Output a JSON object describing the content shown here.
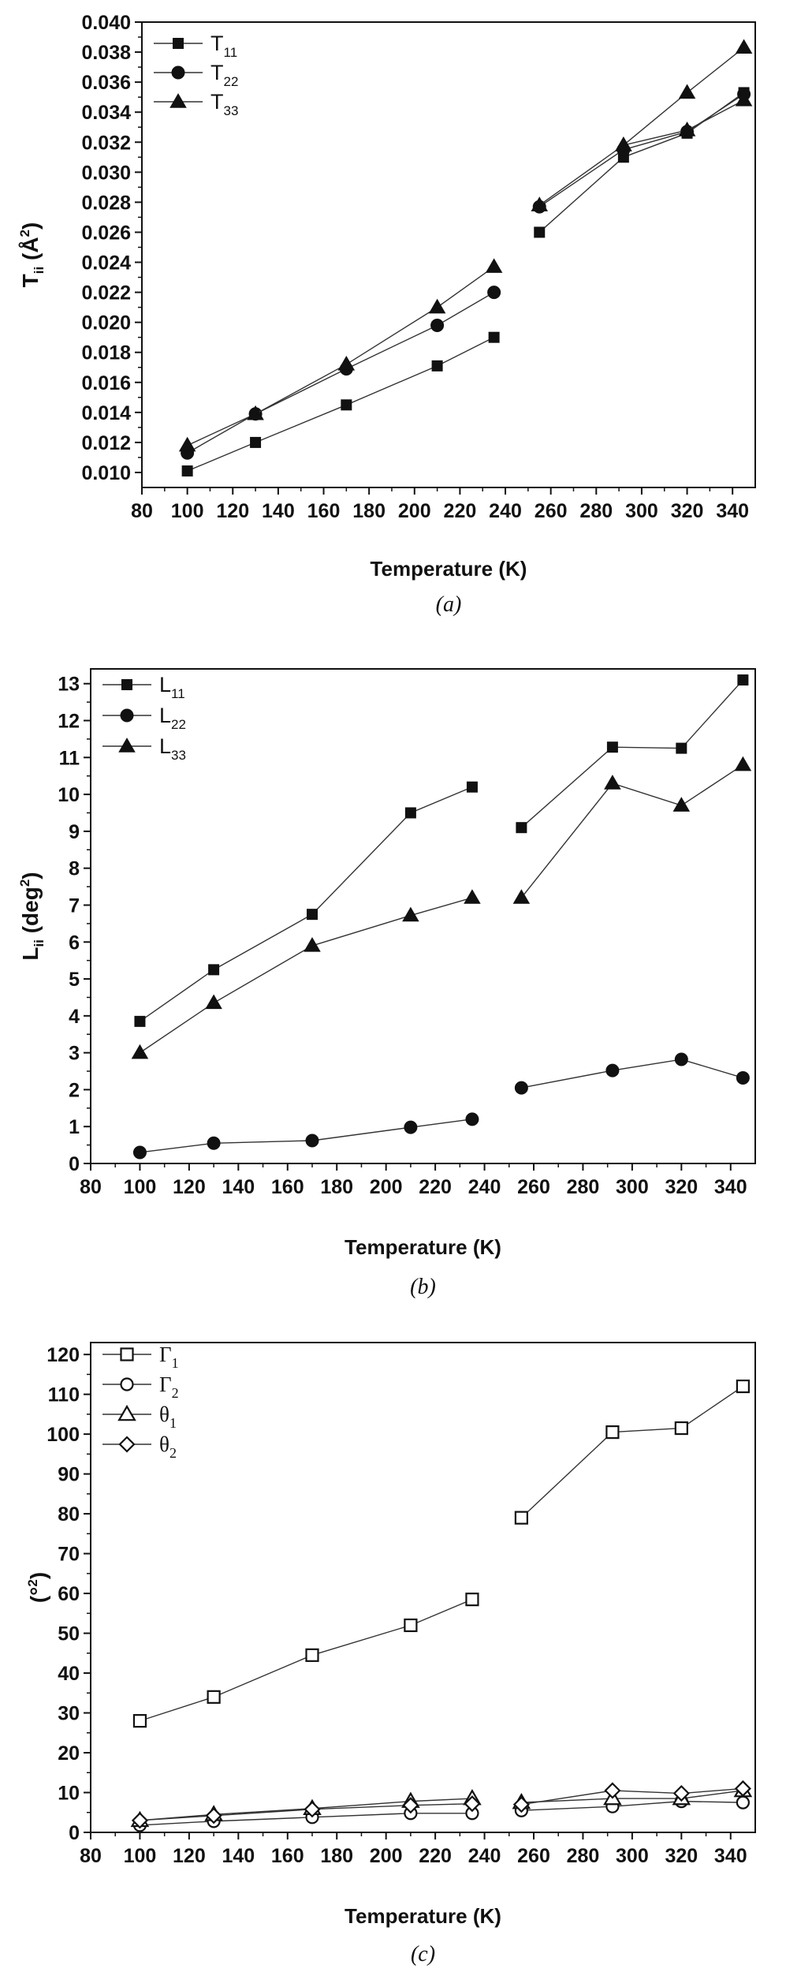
{
  "chart_data": [
    {
      "type": "line",
      "panel": "(a)",
      "caption": "(a)",
      "xlabel": "Temperature (K)",
      "ylabel_main": "T",
      "ylabel_sub": "ii",
      "ylabel_rest": " (Å",
      "ylabel_sup": "2",
      "ylabel_close": ")",
      "xlim": [
        80,
        350
      ],
      "ylim": [
        0.009,
        0.04
      ],
      "xticks": [
        80,
        100,
        120,
        140,
        160,
        180,
        200,
        220,
        240,
        260,
        280,
        300,
        320,
        340
      ],
      "yticks": [
        0.01,
        0.012,
        0.014,
        0.016,
        0.018,
        0.02,
        0.022,
        0.024,
        0.026,
        0.028,
        0.03,
        0.032,
        0.034,
        0.036,
        0.038,
        0.04
      ],
      "ytick_decimals": 3,
      "grid": false,
      "legend_position": "top-left",
      "series": [
        {
          "name_main": "T",
          "name_sub": "11",
          "marker": "square",
          "filled": true,
          "segments": [
            [
              [
                100,
                0.0101
              ],
              [
                130,
                0.012
              ],
              [
                170,
                0.0145
              ],
              [
                210,
                0.0171
              ],
              [
                235,
                0.019
              ]
            ],
            [
              [
                255,
                0.026
              ],
              [
                292,
                0.031
              ],
              [
                320,
                0.0326
              ],
              [
                345,
                0.0353
              ]
            ]
          ]
        },
        {
          "name_main": "T",
          "name_sub": "22",
          "marker": "circle",
          "filled": true,
          "segments": [
            [
              [
                100,
                0.0113
              ],
              [
                130,
                0.0139
              ],
              [
                170,
                0.0169
              ],
              [
                210,
                0.0198
              ],
              [
                235,
                0.022
              ]
            ],
            [
              [
                255,
                0.0277
              ],
              [
                292,
                0.0315
              ],
              [
                320,
                0.0327
              ],
              [
                345,
                0.0352
              ]
            ]
          ]
        },
        {
          "name_main": "T",
          "name_sub": "33",
          "marker": "triangle",
          "filled": true,
          "segments": [
            [
              [
                100,
                0.0118
              ],
              [
                130,
                0.0139
              ],
              [
                170,
                0.0172
              ],
              [
                210,
                0.021
              ],
              [
                235,
                0.0237
              ]
            ],
            [
              [
                255,
                0.0278
              ],
              [
                292,
                0.0318
              ],
              [
                320,
                0.0353
              ],
              [
                345,
                0.0383
              ]
            ]
          ]
        },
        {
          "name_main": "",
          "name_sub": "",
          "marker": "triangle",
          "filled": true,
          "segments": [
            [
              [
                292,
                0.0318
              ],
              [
                320,
                0.0328
              ],
              [
                345,
                0.0348
              ]
            ]
          ]
        }
      ]
    },
    {
      "type": "line",
      "panel": "(b)",
      "caption": "(b)",
      "xlabel": "Temperature (K)",
      "ylabel_main": "L",
      "ylabel_sub": "ii",
      "ylabel_rest": " (deg",
      "ylabel_sup": "2",
      "ylabel_close": ")",
      "xlim": [
        80,
        350
      ],
      "ylim": [
        0,
        13.4
      ],
      "xticks": [
        80,
        100,
        120,
        140,
        160,
        180,
        200,
        220,
        240,
        260,
        280,
        300,
        320,
        340
      ],
      "yticks": [
        0,
        1,
        2,
        3,
        4,
        5,
        6,
        7,
        8,
        9,
        10,
        11,
        12,
        13
      ],
      "ytick_decimals": 0,
      "grid": false,
      "legend_position": "top-left",
      "series": [
        {
          "name_main": "L",
          "name_sub": "11",
          "marker": "square",
          "filled": true,
          "segments": [
            [
              [
                100,
                3.85
              ],
              [
                130,
                5.25
              ],
              [
                170,
                6.75
              ],
              [
                210,
                9.5
              ],
              [
                235,
                10.2
              ]
            ],
            [
              [
                255,
                9.1
              ],
              [
                292,
                11.28
              ],
              [
                320,
                11.25
              ],
              [
                345,
                13.1
              ]
            ]
          ]
        },
        {
          "name_main": "L",
          "name_sub": "22",
          "marker": "circle",
          "filled": true,
          "segments": [
            [
              [
                100,
                0.3
              ],
              [
                130,
                0.55
              ],
              [
                170,
                0.62
              ],
              [
                210,
                0.98
              ],
              [
                235,
                1.2
              ]
            ],
            [
              [
                255,
                2.05
              ],
              [
                292,
                2.52
              ],
              [
                320,
                2.82
              ],
              [
                345,
                2.32
              ]
            ]
          ]
        },
        {
          "name_main": "L",
          "name_sub": "33",
          "marker": "triangle",
          "filled": true,
          "segments": [
            [
              [
                100,
                3.0
              ],
              [
                130,
                4.35
              ],
              [
                170,
                5.9
              ],
              [
                210,
                6.72
              ],
              [
                235,
                7.2
              ]
            ],
            [
              [
                255,
                7.2
              ],
              [
                292,
                10.3
              ],
              [
                320,
                9.7
              ],
              [
                345,
                10.8
              ]
            ]
          ]
        }
      ]
    },
    {
      "type": "line",
      "panel": "(c)",
      "caption": "(c)",
      "xlabel": "Temperature (K)",
      "ylabel_main": "(°",
      "ylabel_sub": "",
      "ylabel_rest": "",
      "ylabel_sup": "2",
      "ylabel_close": ")",
      "xlim": [
        80,
        350
      ],
      "ylim": [
        0,
        123
      ],
      "xticks": [
        80,
        100,
        120,
        140,
        160,
        180,
        200,
        220,
        240,
        260,
        280,
        300,
        320,
        340
      ],
      "yticks": [
        0,
        10,
        20,
        30,
        40,
        50,
        60,
        70,
        80,
        90,
        100,
        110,
        120
      ],
      "ytick_decimals": 0,
      "grid": false,
      "legend_position": "top-left",
      "series": [
        {
          "name_main": "Γ",
          "name_sub": "1",
          "marker": "square",
          "filled": false,
          "segments": [
            [
              [
                100,
                28.0
              ],
              [
                130,
                34.0
              ],
              [
                170,
                44.5
              ],
              [
                210,
                52.0
              ],
              [
                235,
                58.5
              ]
            ],
            [
              [
                255,
                79.0
              ],
              [
                292,
                100.5
              ],
              [
                320,
                101.5
              ],
              [
                345,
                112.0
              ]
            ]
          ]
        },
        {
          "name_main": "Γ",
          "name_sub": "2",
          "marker": "circle",
          "filled": false,
          "segments": [
            [
              [
                100,
                1.8
              ],
              [
                130,
                2.8
              ],
              [
                170,
                3.8
              ],
              [
                210,
                4.8
              ],
              [
                235,
                4.8
              ]
            ],
            [
              [
                255,
                5.5
              ],
              [
                292,
                6.5
              ],
              [
                320,
                7.8
              ],
              [
                345,
                7.5
              ]
            ]
          ]
        },
        {
          "name_main": "θ",
          "name_sub": "1",
          "marker": "triangle",
          "filled": false,
          "segments": [
            [
              [
                100,
                3.0
              ],
              [
                130,
                4.5
              ],
              [
                170,
                6.0
              ],
              [
                210,
                7.8
              ],
              [
                235,
                8.5
              ]
            ],
            [
              [
                255,
                7.5
              ],
              [
                292,
                8.5
              ],
              [
                320,
                8.5
              ],
              [
                345,
                10.5
              ]
            ]
          ]
        },
        {
          "name_main": "θ",
          "name_sub": "2",
          "marker": "diamond",
          "filled": false,
          "segments": [
            [
              [
                100,
                3.0
              ],
              [
                130,
                4.2
              ],
              [
                170,
                5.8
              ],
              [
                210,
                6.8
              ],
              [
                235,
                7.2
              ]
            ],
            [
              [
                255,
                7.0
              ],
              [
                292,
                10.5
              ],
              [
                320,
                9.8
              ],
              [
                345,
                11.0
              ]
            ]
          ]
        }
      ]
    }
  ]
}
